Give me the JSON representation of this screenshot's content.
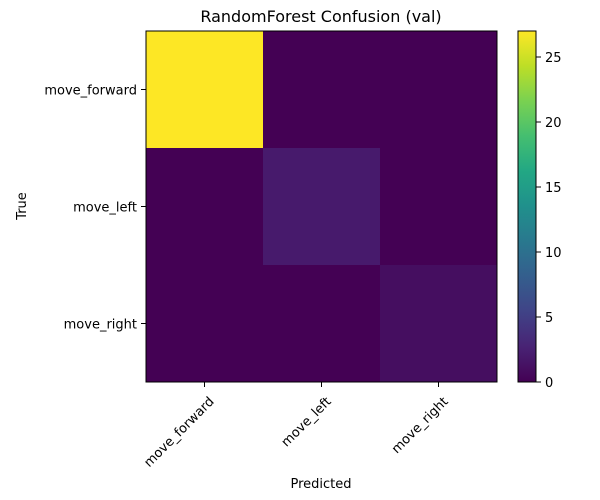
{
  "chart_data": {
    "type": "heatmap",
    "title": "RandomForest Confusion (val)",
    "xlabel": "Predicted",
    "ylabel": "True",
    "x_categories": [
      "move_forward",
      "move_left",
      "move_right"
    ],
    "y_categories": [
      "move_forward",
      "move_left",
      "move_right"
    ],
    "values": [
      [
        27,
        0,
        0
      ],
      [
        0,
        2,
        0
      ],
      [
        0,
        0,
        1
      ]
    ],
    "color_range": [
      0,
      27
    ],
    "colormap": "viridis",
    "colorbar_ticks": [
      "0",
      "5",
      "10",
      "15",
      "20",
      "25"
    ],
    "grid": false
  }
}
